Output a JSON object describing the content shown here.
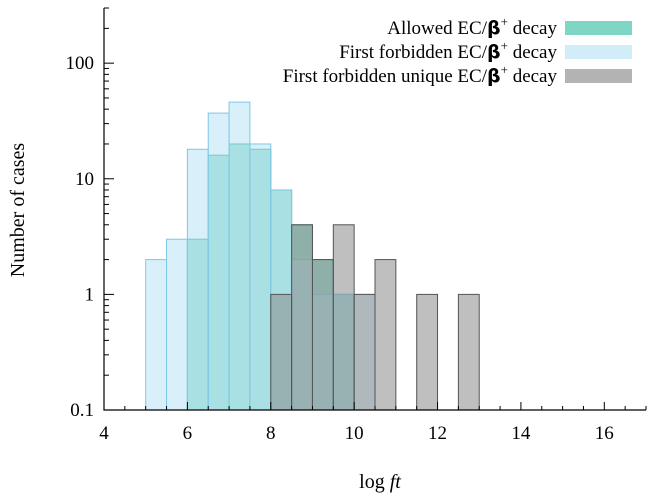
{
  "chart_data": {
    "type": "bar",
    "title": "",
    "xlabel_prefix": "log ",
    "xlabel_italic": "ft",
    "ylabel": "Number of cases",
    "xlim": [
      4,
      17
    ],
    "ylim": [
      0.1,
      300
    ],
    "yscale": "log",
    "xticks": [
      4,
      6,
      8,
      10,
      12,
      14,
      16
    ],
    "xtick_labels": [
      "4",
      "6",
      "8",
      "10",
      "12",
      "14",
      "16"
    ],
    "yticks": [
      0.1,
      1,
      10,
      100
    ],
    "ytick_labels": [
      "0.1",
      "1",
      "10",
      "100"
    ],
    "legend_position": "top-right",
    "bin_width": 0.5,
    "series": [
      {
        "name_parts": [
          "Allowed EC/",
          "β",
          "+",
          " decay"
        ],
        "color": "#3cc0a6",
        "fill_opacity": 0.55,
        "stroke": "#2aa894",
        "bins": [
          {
            "x": 6.0,
            "y": 3
          },
          {
            "x": 6.5,
            "y": 16
          },
          {
            "x": 7.0,
            "y": 20
          },
          {
            "x": 7.5,
            "y": 18
          },
          {
            "x": 8.0,
            "y": 8
          },
          {
            "x": 8.5,
            "y": 4
          },
          {
            "x": 9.0,
            "y": 2
          },
          {
            "x": 9.5,
            "y": 1
          }
        ]
      },
      {
        "name_parts": [
          "First forbidden EC/",
          "β",
          "+",
          " decay"
        ],
        "color": "#b9e4f5",
        "fill_opacity": 0.55,
        "stroke": "#7ec8e6",
        "bins": [
          {
            "x": 5.0,
            "y": 2
          },
          {
            "x": 5.5,
            "y": 3
          },
          {
            "x": 6.0,
            "y": 18
          },
          {
            "x": 6.5,
            "y": 37
          },
          {
            "x": 7.0,
            "y": 46
          },
          {
            "x": 7.5,
            "y": 20
          },
          {
            "x": 8.0,
            "y": 8
          },
          {
            "x": 8.5,
            "y": 2
          },
          {
            "x": 9.0,
            "y": 1
          },
          {
            "x": 9.5,
            "y": 1
          },
          {
            "x": 10.0,
            "y": 1
          }
        ]
      },
      {
        "name_parts": [
          "First forbidden unique EC/",
          "β",
          "+",
          " decay"
        ],
        "color": "#8a8a8a",
        "fill_opacity": 0.55,
        "stroke": "#555555",
        "bins": [
          {
            "x": 8.0,
            "y": 1
          },
          {
            "x": 8.5,
            "y": 4
          },
          {
            "x": 9.0,
            "y": 2
          },
          {
            "x": 9.5,
            "y": 4
          },
          {
            "x": 10.0,
            "y": 1
          },
          {
            "x": 10.5,
            "y": 2
          },
          {
            "x": 11.5,
            "y": 1
          },
          {
            "x": 12.5,
            "y": 1
          }
        ]
      }
    ]
  }
}
